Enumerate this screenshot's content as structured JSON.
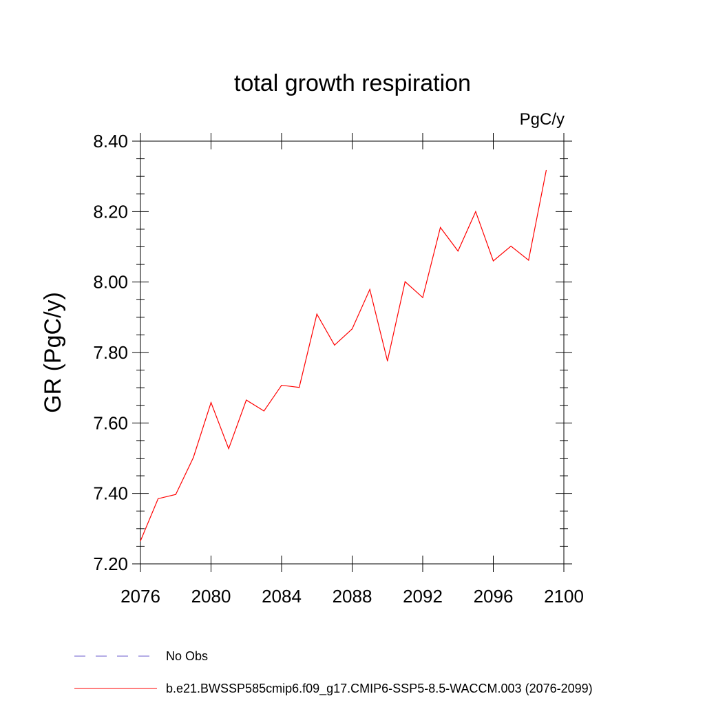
{
  "chart_data": {
    "type": "line",
    "title": "total growth respiration",
    "units_label": "PgC/y",
    "ylabel": "GR  (PgC/y)",
    "xlabel": "",
    "xlim": [
      2076,
      2100
    ],
    "ylim": [
      7.2,
      8.4
    ],
    "x_ticks": [
      2076,
      2080,
      2084,
      2088,
      2092,
      2096,
      2100
    ],
    "y_ticks": [
      "7.20",
      "7.40",
      "7.60",
      "7.80",
      "8.00",
      "8.20",
      "8.40"
    ],
    "grid": false,
    "legend_position": "bottom",
    "series": [
      {
        "name": "b.e21.BWSSP585cmip6.f09_g17.CMIP6-SSP5-8.5-WACCM.003 (2076-2099)",
        "color": "#ff0000",
        "style": "solid",
        "x": [
          2076,
          2077,
          2078,
          2079,
          2080,
          2081,
          2082,
          2083,
          2084,
          2085,
          2086,
          2087,
          2088,
          2089,
          2090,
          2091,
          2092,
          2093,
          2094,
          2095,
          2096,
          2097,
          2098,
          2099
        ],
        "y": [
          7.265,
          7.385,
          7.397,
          7.502,
          7.658,
          7.527,
          7.665,
          7.634,
          7.707,
          7.701,
          7.909,
          7.821,
          7.867,
          7.979,
          7.776,
          8.001,
          7.956,
          8.155,
          8.088,
          8.2,
          8.06,
          8.102,
          8.062,
          8.317
        ]
      }
    ],
    "legend": [
      {
        "name": "No Obs",
        "color": "#6a5acd",
        "style": "dashed"
      },
      {
        "name": "b.e21.BWSSP585cmip6.f09_g17.CMIP6-SSP5-8.5-WACCM.003 (2076-2099)",
        "color": "#ff0000",
        "style": "solid"
      }
    ]
  }
}
